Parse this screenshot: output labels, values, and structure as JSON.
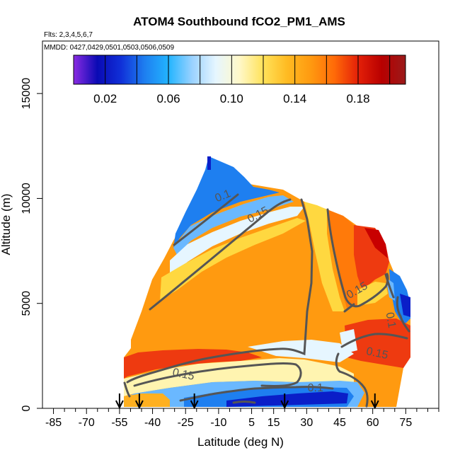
{
  "chart_data": {
    "type": "heatmap",
    "title": "ATOM4 Southbound fCO2_PM1_AMS",
    "subtitle_flights": "Flts: 2,3,4,5,6,7",
    "subtitle_dates": "MMDD: 0427,0429,0501,0503,0506,0509",
    "xlabel": "Latitude (deg N)",
    "ylabel": "Altitude (m)",
    "xlim": [
      -90,
      90
    ],
    "ylim": [
      0,
      17500
    ],
    "x_ticks": [
      -85,
      -70,
      -55,
      -40,
      -25,
      -10,
      5,
      15,
      30,
      45,
      60,
      75
    ],
    "y_ticks": [
      0,
      5000,
      10000,
      15000
    ],
    "colorbar": {
      "range": [
        0,
        0.21
      ],
      "ticks": [
        "0.02",
        "0.06",
        "0.10",
        "0.14",
        "0.18"
      ],
      "tick_values": [
        0.02,
        0.06,
        0.1,
        0.14,
        0.18
      ],
      "colors": [
        "#8a2be2",
        "#0a0ab4",
        "#1030d8",
        "#1e7ff0",
        "#22b4ff",
        "#9ad2ff",
        "#e6f6ff",
        "#fff8c8",
        "#ffe25a",
        "#ffbb22",
        "#ff9a10",
        "#ff6a08",
        "#e42008",
        "#b80000",
        "#9a1a1a"
      ]
    },
    "contour_labels": [
      {
        "text": "0.1",
        "lat": -8,
        "alt": 10100,
        "angle": -22
      },
      {
        "text": "0.15",
        "lat": 8,
        "alt": 9200,
        "angle": -28
      },
      {
        "text": "0.15",
        "lat": 53,
        "alt": 5600,
        "angle": -30
      },
      {
        "text": "0.1",
        "lat": 68,
        "alt": 4200,
        "angle": 80
      },
      {
        "text": "0.15",
        "lat": 62,
        "alt": 2600,
        "angle": 12
      },
      {
        "text": "0.15",
        "lat": -26,
        "alt": 1600,
        "angle": 12
      },
      {
        "text": "0.1",
        "lat": 34,
        "alt": 950,
        "angle": 0
      }
    ],
    "profile_markers_lat": [
      -55,
      -46,
      -21,
      20,
      61
    ]
  }
}
